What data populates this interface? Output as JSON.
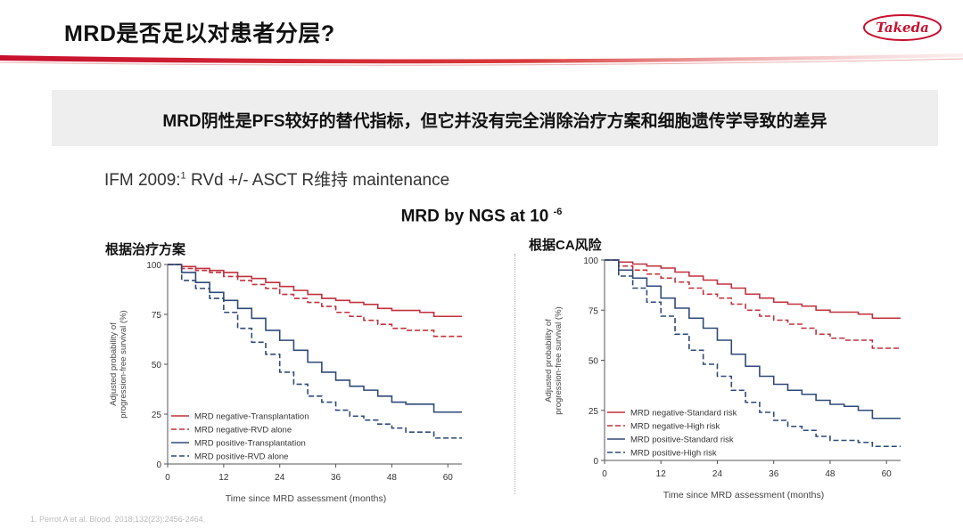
{
  "header": {
    "title": "MRD是否足以对患者分层?",
    "logo_text": "Takeda"
  },
  "banner": {
    "text": "MRD阴性是PFS较好的替代指标，但它并没有完全消除治疗方案和细胞遗传学导致的差异"
  },
  "subtitle": {
    "prefix": "IFM 2009:",
    "sup": "1",
    "suffix": " RVd +/- ASCT R维持 maintenance"
  },
  "main_title": {
    "text": "MRD by NGS at 10",
    "sup": "-6"
  },
  "footnote": "1. Perrot A et al. Blood. 2018;132(23):2456-2464.",
  "colors": {
    "red": "#c0303c",
    "blue": "#2f4a78",
    "axis": "#555555"
  },
  "chart_data": [
    {
      "type": "line",
      "panel_label": "根据治疗方案",
      "title": "",
      "xlabel": "Time since MRD assessment (months)",
      "ylabel_line1": "Adjusted probability of",
      "ylabel_line2": "progression-free survival (%)",
      "xlim": [
        0,
        63
      ],
      "ylim": [
        0,
        100
      ],
      "xticks": [
        0,
        12,
        24,
        36,
        48,
        60
      ],
      "yticks": [
        0,
        25,
        50,
        75,
        100
      ],
      "grid": false,
      "legend_position": "bottom-left",
      "series": [
        {
          "name": "MRD negative-Transplantation",
          "color": "red",
          "dash": false,
          "x": [
            0,
            3,
            6,
            9,
            12,
            15,
            18,
            21,
            24,
            27,
            30,
            33,
            36,
            39,
            42,
            45,
            48,
            51,
            54,
            57,
            60,
            63
          ],
          "y": [
            100,
            99,
            98,
            97,
            96,
            94,
            93,
            91,
            89,
            87,
            85,
            83,
            82,
            81,
            80,
            78,
            77,
            77,
            76,
            74,
            74,
            74
          ]
        },
        {
          "name": "MRD negative-RVD alone",
          "color": "red",
          "dash": true,
          "x": [
            0,
            3,
            6,
            9,
            12,
            15,
            18,
            21,
            24,
            27,
            30,
            33,
            36,
            39,
            42,
            45,
            48,
            51,
            54,
            57,
            60,
            63
          ],
          "y": [
            100,
            98,
            97,
            96,
            94,
            92,
            90,
            88,
            85,
            83,
            81,
            79,
            76,
            74,
            72,
            70,
            68,
            67,
            67,
            64,
            64,
            64
          ]
        },
        {
          "name": "MRD positive-Transplantation",
          "color": "blue",
          "dash": false,
          "x": [
            0,
            3,
            6,
            9,
            12,
            15,
            18,
            21,
            24,
            27,
            30,
            33,
            36,
            39,
            42,
            45,
            48,
            51,
            54,
            57,
            60,
            63
          ],
          "y": [
            100,
            96,
            91,
            86,
            82,
            78,
            73,
            67,
            62,
            57,
            51,
            46,
            42,
            39,
            37,
            34,
            31,
            30,
            30,
            26,
            26,
            26
          ]
        },
        {
          "name": "MRD positive-RVD alone",
          "color": "blue",
          "dash": true,
          "x": [
            0,
            3,
            6,
            9,
            12,
            15,
            18,
            21,
            24,
            27,
            30,
            33,
            36,
            39,
            42,
            45,
            48,
            51,
            54,
            57,
            60,
            63
          ],
          "y": [
            100,
            92,
            88,
            83,
            76,
            68,
            61,
            55,
            46,
            40,
            34,
            31,
            27,
            24,
            22,
            20,
            18,
            16,
            16,
            13,
            13,
            13
          ]
        }
      ]
    },
    {
      "type": "line",
      "panel_label": "根据CA风险",
      "title": "",
      "xlabel": "Time since MRD assessment (months)",
      "ylabel_line1": "Adjusted probability of",
      "ylabel_line2": "progression-free survival (%)",
      "xlim": [
        0,
        63
      ],
      "ylim": [
        0,
        100
      ],
      "xticks": [
        0,
        12,
        24,
        36,
        48,
        60
      ],
      "yticks": [
        0,
        25,
        50,
        75,
        100
      ],
      "grid": false,
      "legend_position": "bottom-left",
      "series": [
        {
          "name": "MRD negative-Standard risk",
          "color": "red",
          "dash": false,
          "x": [
            0,
            3,
            6,
            9,
            12,
            15,
            18,
            21,
            24,
            27,
            30,
            33,
            36,
            39,
            42,
            45,
            48,
            51,
            54,
            57,
            60,
            63
          ],
          "y": [
            100,
            99,
            98,
            97,
            96,
            94,
            92,
            90,
            88,
            86,
            83,
            81,
            79,
            78,
            77,
            75,
            74,
            74,
            73,
            71,
            71,
            71
          ]
        },
        {
          "name": "MRD negative-High risk",
          "color": "red",
          "dash": true,
          "x": [
            0,
            3,
            6,
            9,
            12,
            15,
            18,
            21,
            24,
            27,
            30,
            33,
            36,
            39,
            42,
            45,
            48,
            51,
            54,
            57,
            60,
            63
          ],
          "y": [
            100,
            97,
            95,
            93,
            91,
            89,
            86,
            83,
            81,
            78,
            75,
            72,
            70,
            68,
            66,
            63,
            61,
            60,
            60,
            56,
            56,
            56
          ]
        },
        {
          "name": "MRD positive-Standard risk",
          "color": "blue",
          "dash": false,
          "x": [
            0,
            3,
            6,
            9,
            12,
            15,
            18,
            21,
            24,
            27,
            30,
            33,
            36,
            39,
            42,
            45,
            48,
            51,
            54,
            57,
            60,
            63
          ],
          "y": [
            100,
            95,
            91,
            87,
            81,
            76,
            71,
            66,
            60,
            53,
            47,
            42,
            38,
            35,
            33,
            30,
            28,
            27,
            25,
            21,
            21,
            21
          ]
        },
        {
          "name": "MRD positive-High risk",
          "color": "blue",
          "dash": true,
          "x": [
            0,
            3,
            6,
            9,
            12,
            15,
            18,
            21,
            24,
            27,
            30,
            33,
            36,
            39,
            42,
            45,
            48,
            51,
            54,
            57,
            60,
            63
          ],
          "y": [
            100,
            92,
            86,
            79,
            72,
            63,
            55,
            48,
            42,
            35,
            29,
            24,
            20,
            17,
            15,
            12,
            10,
            10,
            9,
            7,
            7,
            7
          ]
        }
      ]
    }
  ]
}
